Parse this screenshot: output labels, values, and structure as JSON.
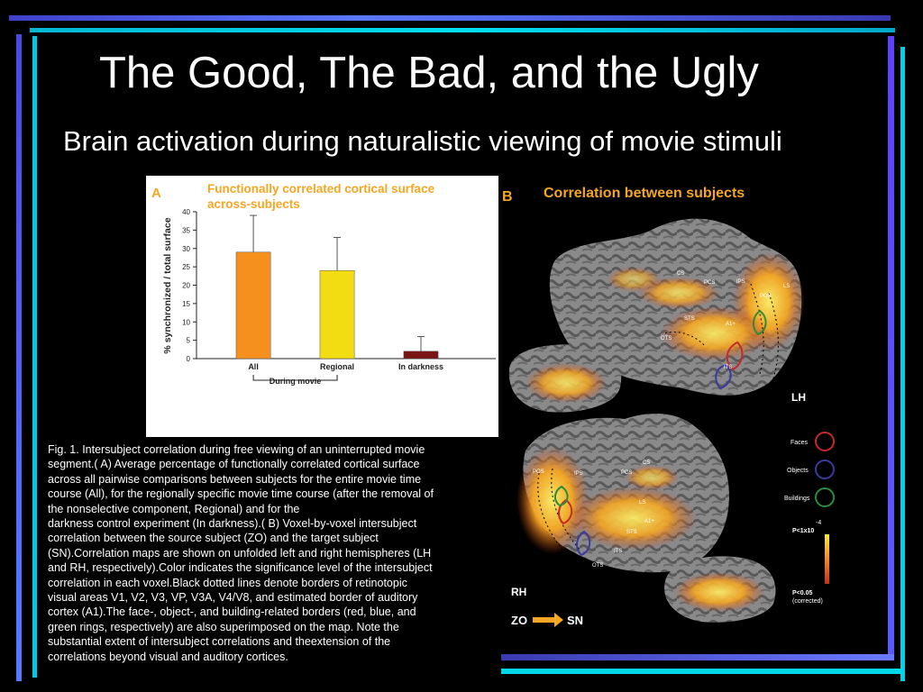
{
  "slide": {
    "title": "The Good, The Bad, and the Ugly",
    "subtitle": "Brain activation during naturalistic viewing of movie stimuli"
  },
  "colors": {
    "background": "#000000",
    "accent_blue": "#4a4aff",
    "accent_cyan": "#00d8e8",
    "bar_orange": "#f5901e",
    "bar_yellow": "#f2dc12",
    "bar_darkred": "#7a1414",
    "panel_title_orange": "#f5a623"
  },
  "chart_data": [
    {
      "type": "bar",
      "panel_letter": "A",
      "title_lines": [
        "Functionally correlated cortical surface",
        "across-subjects"
      ],
      "ylabel": "% synchronized / total surface",
      "ylim": [
        0,
        40
      ],
      "yticks": [
        "40",
        "35",
        "30",
        "25",
        "20",
        "15",
        "10",
        "5",
        "0"
      ],
      "categories": [
        "All",
        "Regional",
        "In darkness"
      ],
      "values": [
        29,
        24,
        2
      ],
      "error_upper": [
        39,
        33,
        6
      ],
      "bar_colors": [
        "#f5901e",
        "#f2dc12",
        "#7a1414"
      ],
      "group_label": "During movie",
      "grid": false
    }
  ],
  "panel_b": {
    "letter": "B",
    "title": "Correlation between subjects",
    "lh_label": "LH",
    "rh_label": "RH",
    "lh_regions": [
      "CS",
      "PCS",
      "IPS",
      "POS",
      "LS",
      "STS",
      "A1+",
      "OTS",
      "ITS"
    ],
    "rh_regions": [
      "POS",
      "IPS",
      "PCS",
      "CS",
      "LS",
      "STS",
      "A1+",
      "ITS",
      "OTS"
    ],
    "legend": [
      {
        "label": "Faces",
        "color": "#c42a2a"
      },
      {
        "label": "Objects",
        "color": "#3a3aa0"
      },
      {
        "label": "Buildings",
        "color": "#2e8b3a"
      }
    ],
    "scale_max_lines": [
      "-4",
      "P<1x10"
    ],
    "scale_min_lines": [
      "P<0.05",
      "(corrected)"
    ],
    "direction_from": "ZO",
    "direction_to": "SN"
  },
  "caption_lines": [
    "Fig. 1. Intersubject correlation during free viewing of an uninterrupted movie",
    "segment.( A) Average percentage of functionally correlated cortical surface",
    "across all pairwise comparisons between subjects for the entire movie time",
    "course (All), for the regionally specific movie time course (after the removal of",
    "the nonselective component, Regional) and for the",
    "darkness control experiment (In darkness).( B) Voxel-by-voxel intersubject",
    "correlation between the source subject (ZO) and the target subject",
    "(SN).Correlation maps are shown on unfolded left and right hemispheres (LH",
    "and RH, respectively).Color indicates the significance level of the intersubject",
    "correlation in each voxel.Black dotted lines denote borders of retinotopic",
    "visual areas V1, V2, V3, VP, V3A, V4/V8, and estimated border of auditory",
    "cortex (A1).The face-, object-, and building-related borders (red, blue, and",
    "green rings, respectively) are also superimposed on the map. Note the",
    "substantial extent of intersubject correlations and theextension of the",
    "correlations beyond visual and auditory cortices."
  ]
}
